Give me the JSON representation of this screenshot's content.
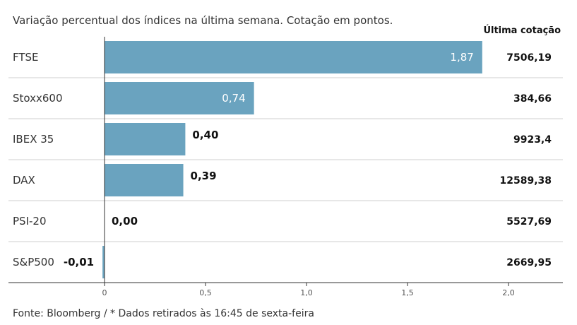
{
  "chart_data": {
    "type": "bar",
    "orientation": "horizontal",
    "title": "Variação percentual dos índices na última semana. Cotação em pontos.",
    "column_header": "Última cotação",
    "categories": [
      "FTSE",
      "Stoxx600",
      "IBEX 35",
      "DAX",
      "PSI-20",
      "S&P500"
    ],
    "values": [
      1.87,
      0.74,
      0.4,
      0.39,
      0.0,
      -0.01
    ],
    "value_labels": [
      "1,87",
      "0,74",
      "0,40",
      "0,39",
      "0,00",
      "-0,01"
    ],
    "last_quote": [
      "7506,19",
      "384,66",
      "9923,4",
      "12589,38",
      "5527,69",
      "2669,95"
    ],
    "xlim": [
      0,
      2.0
    ],
    "xticks": [
      0,
      0.5,
      1.0,
      1.5,
      2.0
    ],
    "xtick_labels": [
      "0",
      "0,5",
      "1,0",
      "1,5",
      "2,0"
    ],
    "bar_color": "#6aa3bf",
    "source": "Fonte: Bloomberg / * Dados retirados às 16:45 de sexta-feira"
  }
}
